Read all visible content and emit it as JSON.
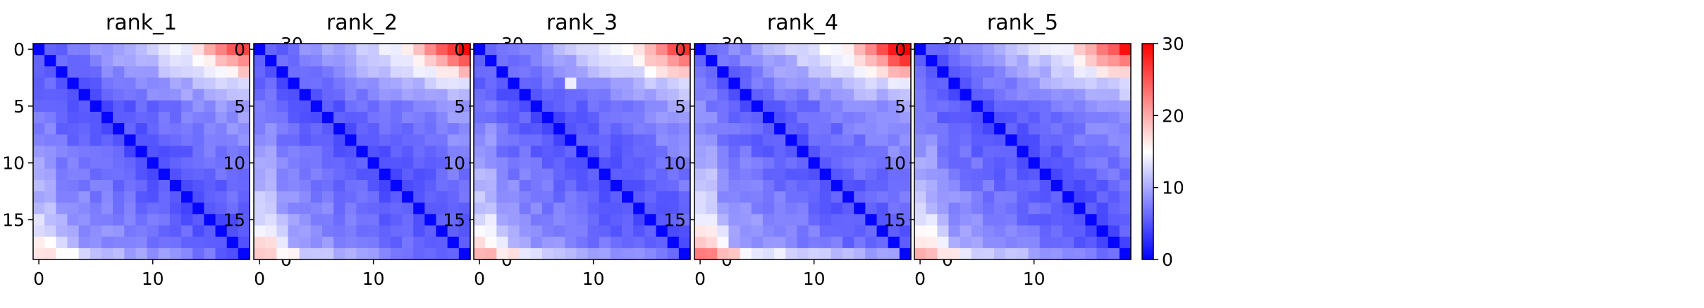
{
  "colormap": {
    "name": "bwr",
    "low": "#0000ff",
    "mid": "#ffffff",
    "high": "#ff0000"
  },
  "chart_data": [
    {
      "type": "heatmap",
      "title": "rank_1",
      "size": 19,
      "vmin": 0,
      "vmax": 30,
      "xticks": [
        0,
        10
      ],
      "yticks": [
        0,
        5,
        10,
        15
      ],
      "colorbar_ticks": [
        0,
        10,
        20,
        30
      ],
      "near_diag": 3.5,
      "grad_ur": 1.6,
      "corner_ur": 10,
      "bottom_row": 13,
      "bottom_left": 8,
      "left_col": 2,
      "spot": null
    },
    {
      "type": "heatmap",
      "title": "rank_2",
      "size": 19,
      "vmin": 0,
      "vmax": 30,
      "xticks": [
        0,
        10
      ],
      "yticks": [
        0,
        5,
        10,
        15
      ],
      "colorbar_ticks": [
        0,
        10,
        20,
        30
      ],
      "near_diag": 3.5,
      "grad_ur": 1.8,
      "corner_ur": 12,
      "bottom_row": 13,
      "bottom_left": 10,
      "left_col": 3,
      "spot": null
    },
    {
      "type": "heatmap",
      "title": "rank_3",
      "size": 19,
      "vmin": 0,
      "vmax": 30,
      "xticks": [
        0,
        10
      ],
      "yticks": [
        0,
        5,
        10,
        15
      ],
      "colorbar_ticks": [
        0,
        10,
        20,
        30
      ],
      "near_diag": 3.5,
      "grad_ur": 1.7,
      "corner_ur": 11,
      "bottom_row": 14,
      "bottom_left": 10,
      "left_col": 3,
      "spot": [
        3,
        8,
        14
      ]
    },
    {
      "type": "heatmap",
      "title": "rank_4",
      "size": 19,
      "vmin": 0,
      "vmax": 30,
      "xticks": [
        0,
        10
      ],
      "yticks": [
        0,
        5,
        10,
        15
      ],
      "colorbar_ticks": [
        0,
        10,
        20,
        30
      ],
      "near_diag": 3.8,
      "grad_ur": 2.0,
      "corner_ur": 14,
      "bottom_row": 16,
      "bottom_left": 11,
      "left_col": 4,
      "spot": null
    },
    {
      "type": "heatmap",
      "title": "rank_5",
      "size": 19,
      "vmin": 0,
      "vmax": 30,
      "xticks": [
        0,
        10
      ],
      "yticks": [
        0,
        5,
        10,
        15
      ],
      "colorbar_ticks": [
        0,
        10,
        20,
        30
      ],
      "near_diag": 3.5,
      "grad_ur": 1.7,
      "corner_ur": 11,
      "bottom_row": 14,
      "bottom_left": 10,
      "left_col": 3,
      "spot": null
    }
  ]
}
